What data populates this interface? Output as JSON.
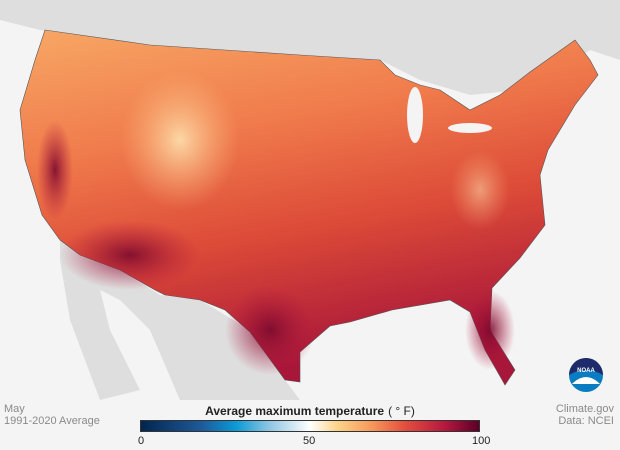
{
  "caption_left": {
    "month": "May",
    "period": "1991-2020 Average"
  },
  "caption_right": {
    "source": "Climate.gov",
    "data": "Data: NCEI"
  },
  "legend": {
    "title": "Average maximum temperature",
    "unit": "( ° F)",
    "ticks": [
      "0",
      "50",
      "100"
    ],
    "range": [
      0,
      100
    ],
    "colors": [
      "#02254f",
      "#0a9ad6",
      "#ffffff",
      "#fcd48a",
      "#e44f3e",
      "#b5173e",
      "#5a0028"
    ]
  },
  "logo": {
    "text": "NOAA"
  }
}
